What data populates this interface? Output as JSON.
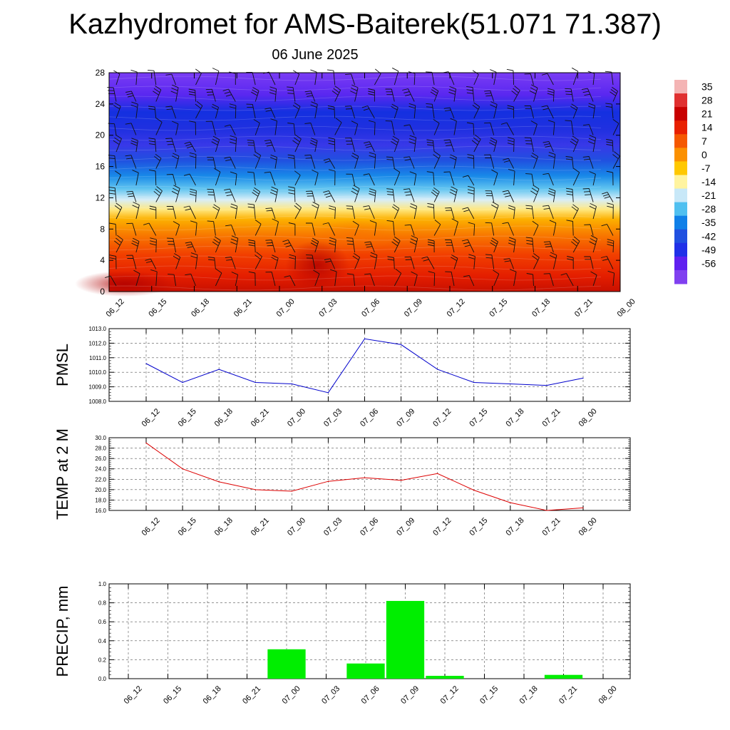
{
  "header": {
    "title": "Kazhydromet for AMS-Baiterek(51.071 71.387)",
    "subtitle": "06 June 2025"
  },
  "colors": {
    "pmsl_line": "#0000cc",
    "temp_line": "#dd0000",
    "precip_bar": "#00ee00"
  },
  "chart_data": [
    {
      "type": "heatmap",
      "title": "",
      "x": [
        "06_12",
        "06_15",
        "06_18",
        "06_21",
        "07_00",
        "07_03",
        "07_06",
        "07_09",
        "07_12",
        "07_15",
        "07_18",
        "07_21",
        "08_00"
      ],
      "y_ticks": [
        0,
        4,
        8,
        12,
        16,
        20,
        24,
        28
      ],
      "ylim": [
        0,
        28
      ],
      "colorbar": {
        "labels": [
          "35",
          "28",
          "21",
          "14",
          "7",
          "0",
          "-7",
          "-14",
          "-21",
          "-28",
          "-35",
          "-42",
          "-49",
          "-56"
        ],
        "colors": [
          "#f4b4b4",
          "#e03030",
          "#c80000",
          "#e82000",
          "#f55800",
          "#fb9000",
          "#ffc800",
          "#fff4a0",
          "#c8e8f8",
          "#50c0f0",
          "#1080e8",
          "#2050e0",
          "#2030e8",
          "#6020f0",
          "#8040f0"
        ]
      },
      "note_overlay": "wind barbs"
    },
    {
      "type": "line",
      "ylabel": "PMSL",
      "x": [
        "06_12",
        "06_15",
        "06_18",
        "06_21",
        "07_00",
        "07_03",
        "07_06",
        "07_09",
        "07_12",
        "07_15",
        "07_18",
        "07_21",
        "08_00"
      ],
      "values": [
        1010.6,
        1009.3,
        1010.2,
        1009.3,
        1009.2,
        1008.6,
        1012.3,
        1011.9,
        1010.2,
        1009.3,
        1009.2,
        1009.1,
        1009.6
      ],
      "ylim": [
        1008.0,
        1013.0
      ],
      "yticks": [
        "1008.0",
        "1009.0",
        "1010.0",
        "1011.0",
        "1012.0",
        "1013.0"
      ],
      "grid": true
    },
    {
      "type": "line",
      "ylabel": "TEMP at 2 M",
      "x": [
        "06_12",
        "06_15",
        "06_18",
        "06_21",
        "07_00",
        "07_03",
        "07_06",
        "07_09",
        "07_12",
        "07_15",
        "07_18",
        "07_21",
        "08_00"
      ],
      "values": [
        29.0,
        24.0,
        21.5,
        20.0,
        19.7,
        21.6,
        22.3,
        21.8,
        23.1,
        19.9,
        17.5,
        16.0,
        16.5
      ],
      "ylim": [
        16.0,
        30.0
      ],
      "yticks": [
        "16.0",
        "18.0",
        "20.0",
        "22.0",
        "24.0",
        "26.0",
        "28.0",
        "30.0"
      ],
      "grid": true
    },
    {
      "type": "bar",
      "ylabel": "PRECIP, mm",
      "categories": [
        "06_12",
        "06_15",
        "06_18",
        "06_21",
        "07_00",
        "07_03",
        "07_06",
        "07_09",
        "07_12",
        "07_15",
        "07_18",
        "07_21",
        "08_00"
      ],
      "values": [
        0,
        0,
        0,
        0,
        0.31,
        0,
        0.16,
        0.82,
        0.03,
        0,
        0,
        0.04,
        0
      ],
      "ylim": [
        0,
        1.0
      ],
      "yticks": [
        "0.0",
        "0.2",
        "0.4",
        "0.6",
        "0.8",
        "1.0"
      ],
      "grid": true
    }
  ]
}
